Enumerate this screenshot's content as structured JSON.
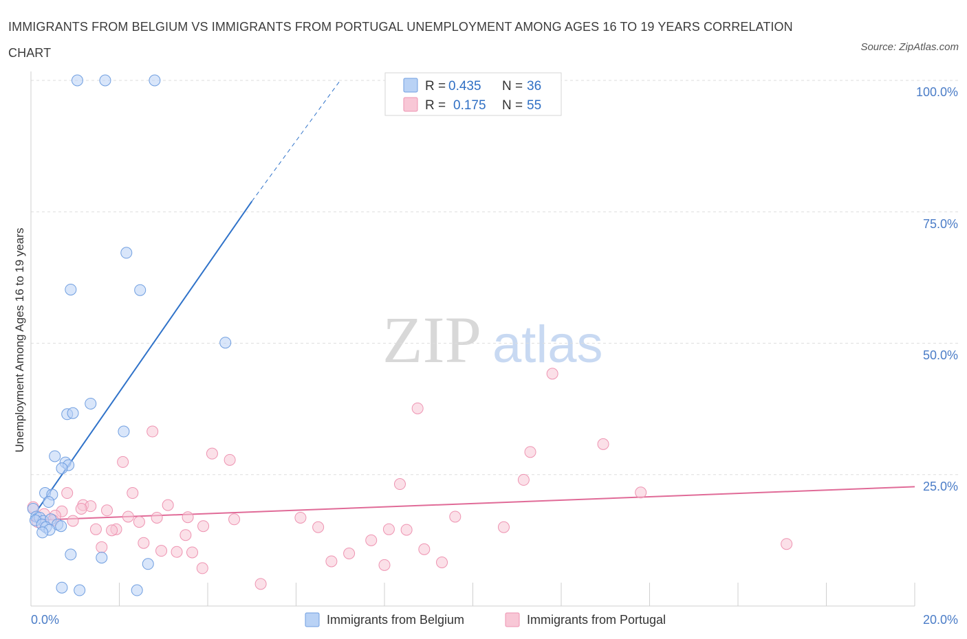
{
  "title": "IMMIGRANTS FROM BELGIUM VS IMMIGRANTS FROM PORTUGAL UNEMPLOYMENT AMONG AGES 16 TO 19 YEARS CORRELATION CHART",
  "source": "Source: ZipAtlas.com",
  "watermark": {
    "zip": "ZIP",
    "atlas": "atlas"
  },
  "legend_box": {
    "row1": {
      "r_label": "R =",
      "r_value": "0.435",
      "n_label": "N =",
      "n_value": "36"
    },
    "row2": {
      "r_label": "R =",
      "r_value": "0.175",
      "n_label": "N =",
      "n_value": "55"
    }
  },
  "colors": {
    "belgium_fill": "#b9d2f5",
    "belgium_stroke": "#6f9ee0",
    "belgium_line": "#2f72c9",
    "portugal_fill": "#f8c7d6",
    "portugal_stroke": "#ee93b1",
    "portugal_line": "#e06a97",
    "tick_text": "#4a7cc7"
  },
  "chart_data": {
    "type": "scatter",
    "title": "IMMIGRANTS FROM BELGIUM VS IMMIGRANTS FROM PORTUGAL UNEMPLOYMENT AMONG AGES 16 TO 19 YEARS CORRELATION CHART",
    "xlabel": "",
    "ylabel": "Unemployment Among Ages 16 to 19 years",
    "xlim": [
      0,
      20
    ],
    "ylim": [
      0,
      100
    ],
    "x_tick_labels": [
      "0.0%",
      "20.0%"
    ],
    "y_tick_labels": [
      "100.0%",
      "75.0%",
      "50.0%",
      "25.0%"
    ],
    "y_tick_values": [
      100,
      75,
      50,
      25
    ],
    "grid": true,
    "legend_position": "top-center",
    "series": [
      {
        "name": "Immigrants from Belgium",
        "R": 0.435,
        "N": 36,
        "trend": {
          "x0": 0,
          "y0": 16.5,
          "x1": 5.0,
          "y1": 77,
          "dashed_to": {
            "x": 7.0,
            "y": 100
          }
        },
        "points": [
          [
            1.05,
            100
          ],
          [
            1.68,
            100
          ],
          [
            2.8,
            100
          ],
          [
            2.16,
            67.2
          ],
          [
            0.9,
            60.2
          ],
          [
            2.47,
            60.1
          ],
          [
            4.4,
            50.1
          ],
          [
            1.35,
            38.5
          ],
          [
            0.82,
            36.5
          ],
          [
            0.95,
            36.7
          ],
          [
            2.1,
            33.2
          ],
          [
            0.54,
            28.5
          ],
          [
            0.78,
            27.3
          ],
          [
            0.85,
            26.8
          ],
          [
            0.7,
            26.2
          ],
          [
            0.32,
            21.5
          ],
          [
            0.48,
            21.2
          ],
          [
            0.4,
            19.8
          ],
          [
            0.05,
            18.5
          ],
          [
            0.12,
            17.0
          ],
          [
            0.2,
            16.8
          ],
          [
            0.28,
            16.2
          ],
          [
            0.1,
            16.3
          ],
          [
            0.25,
            15.5
          ],
          [
            0.45,
            16.5
          ],
          [
            0.6,
            15.5
          ],
          [
            0.68,
            15.2
          ],
          [
            0.34,
            15.0
          ],
          [
            0.42,
            14.5
          ],
          [
            0.26,
            14.0
          ],
          [
            0.9,
            9.8
          ],
          [
            1.6,
            9.2
          ],
          [
            2.65,
            8.0
          ],
          [
            0.7,
            3.5
          ],
          [
            1.1,
            3.0
          ],
          [
            2.4,
            3.0
          ]
        ]
      },
      {
        "name": "Immigrants from Portugal",
        "R": 0.175,
        "N": 55,
        "trend": {
          "x0": 0,
          "y0": 16.3,
          "x1": 20,
          "y1": 22.7
        },
        "points": [
          [
            11.8,
            44.2
          ],
          [
            8.75,
            37.6
          ],
          [
            2.75,
            33.2
          ],
          [
            12.95,
            30.8
          ],
          [
            4.1,
            29.0
          ],
          [
            11.3,
            29.3
          ],
          [
            4.5,
            27.8
          ],
          [
            2.08,
            27.4
          ],
          [
            8.35,
            23.2
          ],
          [
            11.15,
            24.0
          ],
          [
            13.8,
            21.6
          ],
          [
            0.82,
            21.5
          ],
          [
            2.3,
            21.5
          ],
          [
            1.18,
            19.2
          ],
          [
            3.1,
            19.2
          ],
          [
            1.35,
            19.0
          ],
          [
            1.14,
            18.5
          ],
          [
            1.72,
            18.2
          ],
          [
            0.7,
            18.0
          ],
          [
            0.3,
            17.5
          ],
          [
            0.55,
            17.2
          ],
          [
            2.2,
            17.0
          ],
          [
            2.85,
            16.8
          ],
          [
            3.55,
            16.9
          ],
          [
            4.6,
            16.5
          ],
          [
            6.1,
            16.8
          ],
          [
            9.6,
            17.0
          ],
          [
            0.95,
            16.2
          ],
          [
            0.5,
            16.3
          ],
          [
            0.15,
            16.0
          ],
          [
            2.45,
            16.0
          ],
          [
            3.9,
            15.2
          ],
          [
            6.5,
            15.0
          ],
          [
            10.7,
            15.0
          ],
          [
            1.47,
            14.6
          ],
          [
            1.93,
            14.6
          ],
          [
            1.83,
            14.4
          ],
          [
            8.1,
            14.6
          ],
          [
            8.5,
            14.5
          ],
          [
            3.5,
            13.5
          ],
          [
            7.7,
            12.5
          ],
          [
            2.55,
            12.0
          ],
          [
            1.6,
            11.2
          ],
          [
            2.95,
            10.5
          ],
          [
            3.3,
            10.3
          ],
          [
            3.65,
            10.2
          ],
          [
            7.2,
            10.0
          ],
          [
            8.9,
            10.8
          ],
          [
            17.1,
            11.8
          ],
          [
            6.8,
            8.5
          ],
          [
            8.0,
            7.8
          ],
          [
            9.3,
            8.3
          ],
          [
            3.88,
            7.2
          ],
          [
            5.2,
            4.2
          ],
          [
            0.05,
            18.8
          ]
        ]
      }
    ]
  },
  "bottom_legend": {
    "belgium_label": "Immigrants from Belgium",
    "portugal_label": "Immigrants from Portugal"
  }
}
